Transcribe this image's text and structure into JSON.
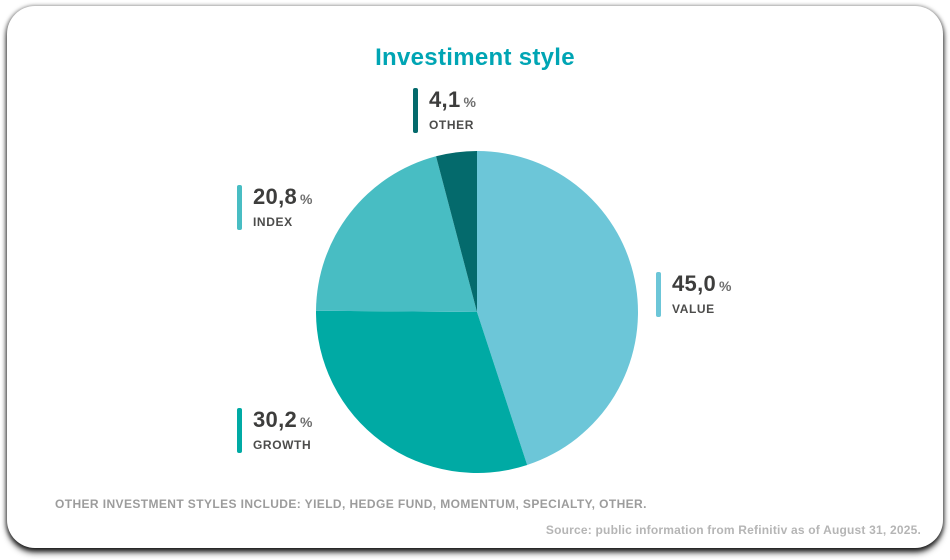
{
  "card": {
    "footnote": "OTHER INVESTMENT STYLES INCLUDE: YIELD, HEDGE FUND, MOMENTUM, SPECIALTY, OTHER.",
    "source": "Source: public information from Refinitiv as of August 31, 2025."
  },
  "chart_data": {
    "type": "pie",
    "title": "Investiment style",
    "title_color": "#00a5b4",
    "unit": "%",
    "start_angle_deg": 0,
    "direction": "clockwise",
    "legend_position": "callouts-around-pie",
    "slices": [
      {
        "label": "VALUE",
        "value": 45.0,
        "display": "45,0",
        "color": "#6cc6d8"
      },
      {
        "label": "GROWTH",
        "value": 30.2,
        "display": "30,2",
        "color": "#00aaa4"
      },
      {
        "label": "INDEX",
        "value": 20.8,
        "display": "20,8",
        "color": "#48bdc3"
      },
      {
        "label": "OTHER",
        "value": 4.1,
        "display": "4,1",
        "color": "#046a6c"
      }
    ]
  }
}
